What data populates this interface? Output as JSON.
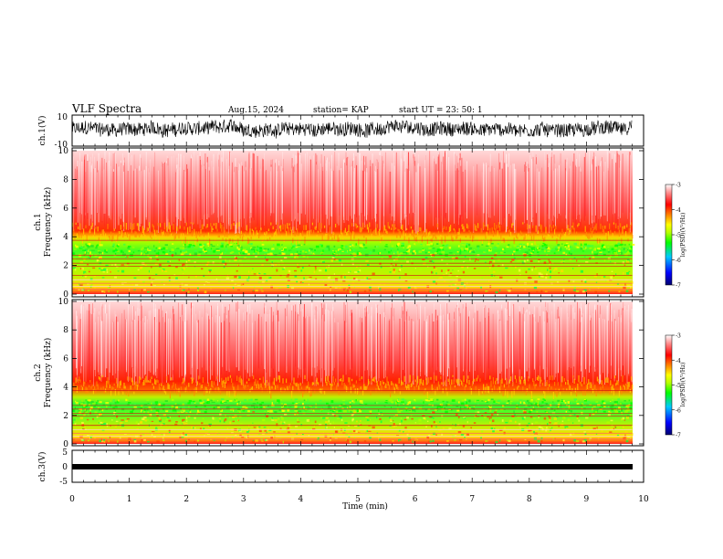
{
  "header": {
    "title": "VLF Spectra",
    "date": "Aug.15, 2024",
    "station": "station= KAP",
    "start": "start  UT  =   23: 50: 1"
  },
  "colors": {
    "background": "#ffffff",
    "trace": "#000000",
    "colormap": [
      "#000070",
      "#0000ff",
      "#00c8ff",
      "#00ff00",
      "#b4ff00",
      "#ffff00",
      "#ff8000",
      "#ff0000",
      "#ff9090",
      "#ffffff"
    ]
  },
  "chart_data": [
    {
      "id": "ch1-waveform",
      "type": "line",
      "ylabel": "ch.1(V)",
      "ylim": [
        -10,
        10
      ],
      "yticks": [
        "10",
        "-10"
      ],
      "xlim": [
        0,
        10
      ],
      "data_end_min": 9.8,
      "level_mean_V": 1,
      "grid": false
    },
    {
      "id": "ch1-spectrogram",
      "type": "heatmap",
      "ylabel": "ch.1\nFrequency (kHz)",
      "ylabel_lines": [
        "ch.1",
        "Frequency  (kHz)"
      ],
      "ylim": [
        0,
        10
      ],
      "yticks": [
        "0",
        "2",
        "4",
        "6",
        "8",
        "10"
      ],
      "xlim": [
        0,
        10
      ],
      "data_end_min": 9.8,
      "noise_floor_kHz": 4.2,
      "green_band_kHz": [
        2.8,
        3.6
      ],
      "colorbar": {
        "label": "log(PSD)(V²/Hz)",
        "range": [
          -7,
          -3
        ],
        "ticks": [
          "-3",
          "-4",
          "-5",
          "-6",
          "-7"
        ]
      },
      "grid": false
    },
    {
      "id": "ch2-spectrogram",
      "type": "heatmap",
      "ylabel": "ch.2\nFrequency (kHz)",
      "ylabel_lines": [
        "ch.2",
        "Frequency  (kHz)"
      ],
      "ylim": [
        0,
        10
      ],
      "yticks": [
        "0",
        "2",
        "4",
        "6",
        "8",
        "10"
      ],
      "xlim": [
        0,
        10
      ],
      "data_end_min": 9.8,
      "noise_floor_kHz": 4.0,
      "green_band_kHz": [
        2.3,
        3.2
      ],
      "colorbar": {
        "label": "log(PSD)(V²/Hz)",
        "range": [
          -7,
          -3
        ],
        "ticks": [
          "-3",
          "-4",
          "-5",
          "-6",
          "-7"
        ]
      },
      "grid": false
    },
    {
      "id": "ch3-waveform",
      "type": "line",
      "ylabel": "ch.3(V)",
      "ylim": [
        -5,
        5
      ],
      "yticks": [
        "5",
        "0",
        "-5"
      ],
      "xlim": [
        0,
        10
      ],
      "data_end_min": 9.8,
      "level_V": 0,
      "grid": false
    }
  ],
  "xaxis": {
    "label": "Time  (min)",
    "ticks": [
      "0",
      "1",
      "2",
      "3",
      "4",
      "5",
      "6",
      "7",
      "8",
      "9",
      "10"
    ]
  }
}
